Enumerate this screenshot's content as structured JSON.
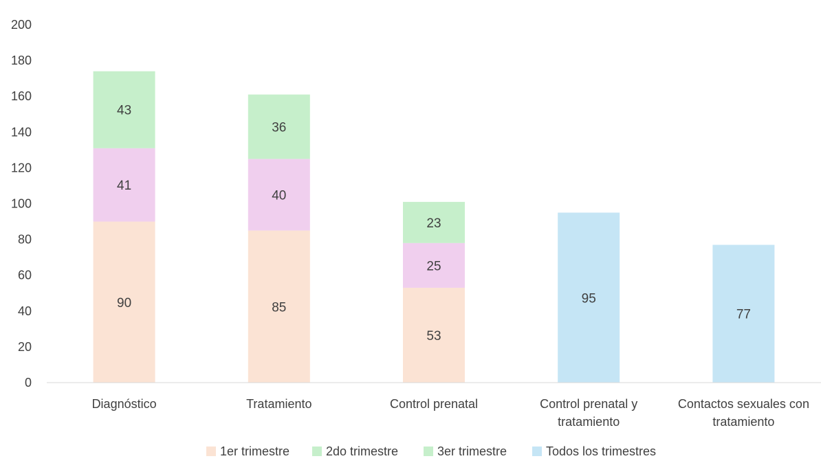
{
  "chart_data": {
    "type": "bar",
    "stacked": true,
    "title": "",
    "xlabel": "",
    "ylabel": "",
    "ylim": [
      0,
      200
    ],
    "yticks": [
      0,
      20,
      40,
      60,
      80,
      100,
      120,
      140,
      160,
      180,
      200
    ],
    "grid": false,
    "legend_position": "bottom",
    "categories": [
      [
        "Diagnóstico"
      ],
      [
        "Tratamiento"
      ],
      [
        "Control prenatal"
      ],
      [
        "Control prenatal y",
        "tratamiento"
      ],
      [
        "Contactos sexuales con",
        "tratamiento"
      ]
    ],
    "series": [
      {
        "name": "1er trimestre",
        "color": "#fbe3d4",
        "values": [
          90,
          85,
          53,
          null,
          null
        ]
      },
      {
        "name": "2do trimestre",
        "color": "#f0cfee",
        "values": [
          41,
          40,
          25,
          null,
          null
        ]
      },
      {
        "name": "3er trimestre",
        "color": "#c6efcb",
        "values": [
          43,
          36,
          23,
          null,
          null
        ]
      },
      {
        "name": "Todos los trimestres",
        "color": "#c5e5f5",
        "values": [
          null,
          null,
          null,
          95,
          77
        ]
      }
    ],
    "legend_swatch_colors": [
      "#fbe3d4",
      "#c6efcb",
      "#c6efcb",
      "#c5e5f5"
    ]
  }
}
